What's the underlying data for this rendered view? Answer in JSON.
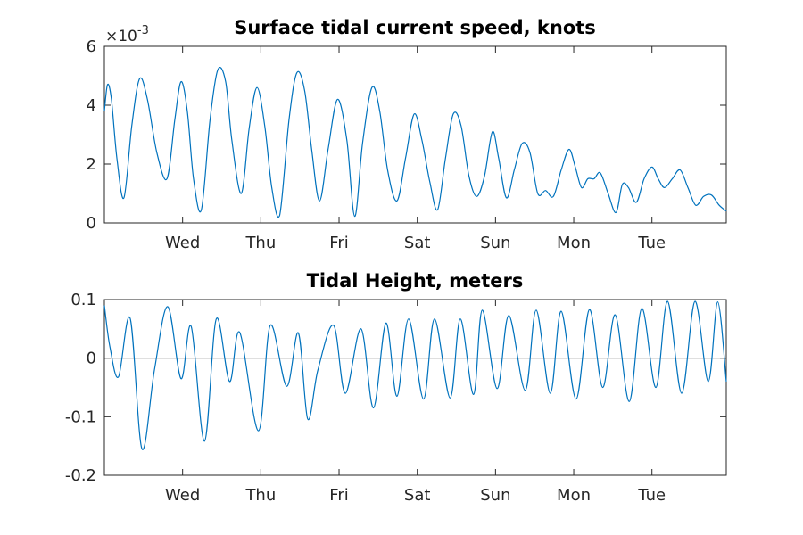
{
  "chart_data": [
    {
      "type": "line",
      "title": "Surface tidal current speed, knots",
      "xlabel": "",
      "ylabel": "",
      "y_exponent_label": "×10",
      "y_exponent_power": "-3",
      "ylim": [
        0,
        0.006
      ],
      "yticks": [
        0,
        0.002,
        0.004,
        0.006
      ],
      "ytick_labels": [
        "0",
        "2",
        "4",
        "6"
      ],
      "xlim": [
        0,
        7.95
      ],
      "xticks": [
        1,
        2,
        3,
        4,
        5,
        6,
        7
      ],
      "xtick_labels": [
        "Wed",
        "Thu",
        "Fri",
        "Sat",
        "Sun",
        "Mon",
        "Tue"
      ],
      "grid": false,
      "zero_line": false,
      "series_color": "#0072BD",
      "series": [
        {
          "x": [
            0,
            0.04,
            0.09,
            0.16,
            0.25,
            0.35,
            0.45,
            0.55,
            0.67,
            0.8,
            0.9,
            0.98,
            1.06,
            1.14,
            1.24,
            1.35,
            1.45,
            1.55,
            1.63,
            1.75,
            1.85,
            1.95,
            2.05,
            2.14,
            2.24,
            2.36,
            2.46,
            2.56,
            2.65,
            2.75,
            2.86,
            2.98,
            3.1,
            3.2,
            3.3,
            3.42,
            3.52,
            3.62,
            3.74,
            3.85,
            3.96,
            4.06,
            4.16,
            4.26,
            4.36,
            4.46,
            4.56,
            4.66,
            4.76,
            4.86,
            4.96,
            5.04,
            5.14,
            5.24,
            5.34,
            5.44,
            5.54,
            5.64,
            5.74,
            5.84,
            5.94,
            6.02,
            6.1,
            6.18,
            6.26,
            6.34,
            6.44,
            6.54,
            6.62,
            6.7,
            6.8,
            6.9,
            7.0,
            7.08,
            7.16,
            7.26,
            7.36,
            7.46,
            7.56,
            7.66,
            7.76,
            7.86,
            7.95
          ],
          "y": [
            0.0038,
            0.0047,
            0.0042,
            0.0022,
            0.00085,
            0.0033,
            0.0049,
            0.0042,
            0.0024,
            0.0015,
            0.0035,
            0.0048,
            0.0038,
            0.0015,
            0.00045,
            0.0035,
            0.0052,
            0.0048,
            0.0028,
            0.001,
            0.0032,
            0.0046,
            0.0033,
            0.0012,
            0.00025,
            0.0035,
            0.0051,
            0.0045,
            0.0025,
            0.00075,
            0.0025,
            0.0042,
            0.0028,
            0.00022,
            0.0027,
            0.0046,
            0.0038,
            0.0018,
            0.00075,
            0.0022,
            0.0037,
            0.0028,
            0.0014,
            0.00045,
            0.0022,
            0.0037,
            0.0033,
            0.0016,
            0.0009,
            0.0016,
            0.0031,
            0.0022,
            0.00085,
            0.0018,
            0.0027,
            0.0024,
            0.001,
            0.0011,
            0.0009,
            0.0018,
            0.0025,
            0.0019,
            0.0012,
            0.0015,
            0.0015,
            0.0017,
            0.001,
            0.00035,
            0.0013,
            0.0012,
            0.0007,
            0.0015,
            0.0019,
            0.0015,
            0.0012,
            0.0015,
            0.0018,
            0.0012,
            0.0006,
            0.0009,
            0.00095,
            0.0006,
            0.0004
          ]
        }
      ]
    },
    {
      "type": "line",
      "title": "Tidal Height, meters",
      "xlabel": "",
      "ylabel": "",
      "ylim": [
        -0.2,
        0.1
      ],
      "yticks": [
        -0.2,
        -0.1,
        0,
        0.1
      ],
      "ytick_labels": [
        "-0.2",
        "-0.1",
        "0",
        "0.1"
      ],
      "xlim": [
        0,
        7.95
      ],
      "xticks": [
        1,
        2,
        3,
        4,
        5,
        6,
        7
      ],
      "xtick_labels": [
        "Wed",
        "Thu",
        "Fri",
        "Sat",
        "Sun",
        "Mon",
        "Tue"
      ],
      "grid": false,
      "zero_line": true,
      "series_color": "#0072BD",
      "series": [
        {
          "x": [
            0,
            0.07,
            0.18,
            0.33,
            0.48,
            0.64,
            0.81,
            0.98,
            1.11,
            1.28,
            1.43,
            1.6,
            1.73,
            1.97,
            2.12,
            2.33,
            2.48,
            2.6,
            2.73,
            2.93,
            3.08,
            3.28,
            3.44,
            3.6,
            3.74,
            3.89,
            4.08,
            4.22,
            4.42,
            4.55,
            4.72,
            4.83,
            5.02,
            5.17,
            5.38,
            5.52,
            5.7,
            5.84,
            6.03,
            6.2,
            6.37,
            6.53,
            6.71,
            6.87,
            7.05,
            7.2,
            7.38,
            7.55,
            7.72,
            7.84,
            7.95
          ],
          "y": [
            0.09,
            0.02,
            -0.032,
            0.068,
            -0.155,
            -0.02,
            0.088,
            -0.035,
            0.054,
            -0.142,
            0.067,
            -0.04,
            0.044,
            -0.124,
            0.056,
            -0.048,
            0.043,
            -0.104,
            -0.02,
            0.056,
            -0.06,
            0.05,
            -0.085,
            0.06,
            -0.065,
            0.067,
            -0.07,
            0.067,
            -0.068,
            0.067,
            -0.062,
            0.082,
            -0.052,
            0.073,
            -0.055,
            0.082,
            -0.06,
            0.08,
            -0.07,
            0.083,
            -0.05,
            0.074,
            -0.074,
            0.085,
            -0.05,
            0.097,
            -0.06,
            0.097,
            -0.04,
            0.096,
            -0.04
          ]
        }
      ]
    }
  ]
}
